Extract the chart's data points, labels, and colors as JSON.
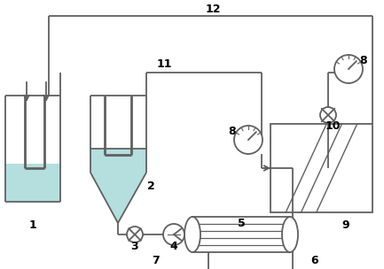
{
  "bg_color": "#ffffff",
  "line_color": "#606060",
  "fill_color": "#b5dede",
  "label_color": "#000000",
  "lw": 1.3
}
